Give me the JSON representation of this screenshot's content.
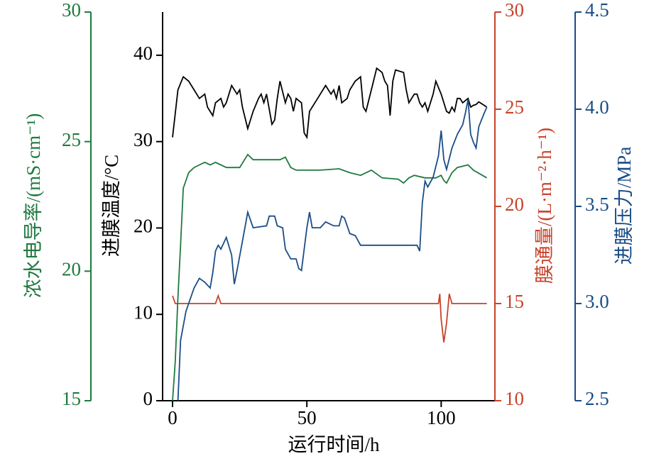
{
  "chart_data": {
    "type": "line",
    "x_label": "运行时间/h",
    "y_label": "进膜温度/°C",
    "y2_label": "膜通量/(L·m⁻²·h⁻¹)",
    "y3_label": "浓水电导率/(mS·cm⁻¹)",
    "y4_label": "进膜压力/MPa",
    "xlim": [
      -3.7,
      120
    ],
    "xticks": [
      0,
      50,
      100
    ],
    "ylim": [
      0,
      45
    ],
    "yticks": [
      0,
      10,
      20,
      30,
      40
    ],
    "y2lim": [
      10,
      30
    ],
    "y2ticks": [
      10,
      15,
      20,
      25,
      30
    ],
    "y3lim": [
      15,
      30
    ],
    "y3ticks": [
      15,
      20,
      25,
      30
    ],
    "y4lim": [
      2.5,
      4.5
    ],
    "y4ticks": [
      2.5,
      {
        "value": 3,
        "label": "3.0"
      },
      3.5,
      {
        "value": 4,
        "label": "4.0"
      },
      4.5
    ],
    "axis_colors": {
      "y": "#000000",
      "y2": "#c8432b",
      "y3": "#1f7a40",
      "y4": "#1a4d86"
    },
    "series": [
      {
        "name": "进膜温度",
        "axis": "y",
        "color": "#000000",
        "x": [
          0,
          2,
          4,
          6,
          8,
          10,
          12,
          13,
          15,
          16,
          18,
          19,
          20,
          22,
          24,
          25,
          26,
          28,
          30,
          32,
          33,
          34,
          35,
          37,
          38,
          39,
          40,
          42,
          43,
          44,
          45,
          46,
          48,
          49,
          50,
          51,
          54,
          57,
          59,
          60,
          61,
          62,
          63,
          65,
          66,
          68,
          70,
          71,
          72,
          74,
          76,
          78,
          79,
          80,
          81,
          82,
          83,
          86,
          87,
          88,
          90,
          91,
          92,
          93,
          94,
          95,
          97,
          98,
          100,
          101,
          102,
          103,
          104,
          105,
          106,
          107,
          108,
          110,
          111,
          112,
          113,
          114,
          116,
          117
        ],
        "values": [
          30.5,
          36,
          37.5,
          37,
          36,
          35,
          35.5,
          34,
          33,
          34.5,
          35,
          34,
          34.5,
          36.5,
          35.5,
          36,
          34,
          31.5,
          33.5,
          35,
          35.5,
          34.5,
          35.5,
          32,
          32.5,
          35,
          37,
          34.5,
          35.5,
          35,
          33.5,
          35,
          34.5,
          31,
          30.5,
          33.5,
          35,
          36.5,
          35.5,
          36,
          35,
          36.5,
          34.5,
          35,
          36,
          37,
          37.5,
          34,
          33.5,
          36,
          38.5,
          38,
          37,
          36.5,
          33,
          37,
          38.3,
          38,
          36,
          34.5,
          35.5,
          35.5,
          34.5,
          34,
          34.5,
          33.5,
          35.5,
          37,
          35.5,
          34.5,
          33.5,
          33.3,
          34,
          33.5,
          35,
          35,
          34.5,
          35,
          34,
          34.2,
          34.3,
          34.6,
          34.2,
          34
        ]
      },
      {
        "name": "膜通量",
        "axis": "y2",
        "color": "#c8432b",
        "x": [
          0,
          1,
          16,
          17,
          18,
          99,
          99.5,
          100,
          101,
          102,
          103,
          104,
          117
        ],
        "values": [
          15.4,
          15.0,
          15.0,
          15.4,
          15.0,
          15.0,
          15.5,
          14.2,
          13.0,
          14.0,
          15.5,
          15.0,
          15.0
        ]
      },
      {
        "name": "浓水电导率",
        "axis": "y3",
        "color": "#1f7a40",
        "x": [
          0,
          1,
          2,
          3,
          4,
          5,
          6,
          8,
          10,
          12,
          14,
          16,
          18,
          20,
          25,
          28,
          30,
          40,
          42,
          44,
          46,
          55,
          62,
          66,
          70,
          74,
          78,
          84,
          86,
          88,
          90,
          94,
          98,
          100,
          101,
          102,
          104,
          106,
          110,
          112,
          117
        ],
        "values": [
          15,
          16.5,
          19,
          21,
          23.2,
          23.5,
          23.8,
          24,
          24.1,
          24.2,
          24.1,
          24.2,
          24.1,
          24.0,
          24.0,
          24.5,
          24.3,
          24.3,
          24.4,
          24.0,
          23.9,
          23.9,
          23.95,
          23.8,
          23.7,
          23.9,
          23.6,
          23.55,
          23.4,
          23.6,
          23.7,
          23.6,
          23.6,
          23.7,
          23.5,
          23.4,
          23.8,
          24.0,
          24.1,
          23.9,
          23.6
        ]
      },
      {
        "name": "进膜压力",
        "axis": "y4",
        "color": "#1a4d86",
        "x": [
          2,
          3,
          5,
          6,
          8,
          10,
          12,
          14,
          15,
          16,
          17,
          18,
          20,
          22,
          23,
          24,
          26,
          28,
          30,
          35,
          36,
          38,
          39,
          41,
          42,
          44,
          46,
          47,
          48,
          50,
          51,
          52,
          55,
          57,
          60,
          62,
          63,
          64,
          66,
          68,
          70,
          91,
          92,
          93,
          94,
          95,
          97,
          99,
          100,
          101,
          102,
          104,
          106,
          108,
          109,
          110,
          111,
          112,
          113,
          114,
          116,
          117
        ],
        "values": [
          2.5,
          2.81,
          2.96,
          3.0,
          3.08,
          3.13,
          3.11,
          3.08,
          3.16,
          3.27,
          3.3,
          3.28,
          3.34,
          3.25,
          3.1,
          3.17,
          3.32,
          3.47,
          3.39,
          3.4,
          3.45,
          3.45,
          3.4,
          3.39,
          3.28,
          3.23,
          3.23,
          3.18,
          3.17,
          3.39,
          3.47,
          3.39,
          3.39,
          3.42,
          3.4,
          3.4,
          3.45,
          3.44,
          3.36,
          3.35,
          3.3,
          3.3,
          3.27,
          3.52,
          3.63,
          3.6,
          3.65,
          3.76,
          3.89,
          3.74,
          3.69,
          3.8,
          3.87,
          3.92,
          3.98,
          4.05,
          3.87,
          3.83,
          3.8,
          3.91,
          3.98,
          4.01
        ]
      }
    ]
  }
}
